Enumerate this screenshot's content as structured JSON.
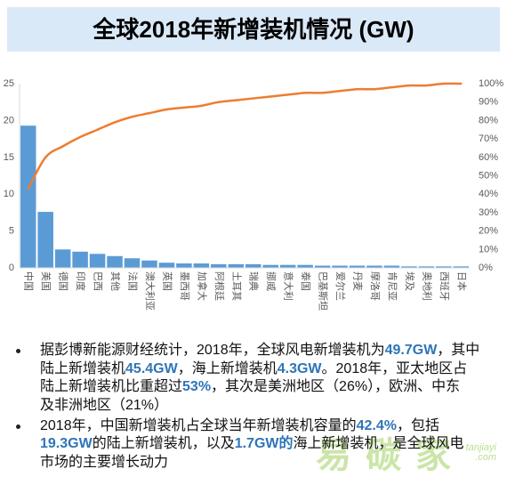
{
  "page": {
    "title": "全球2018年新增装机情况 (GW)"
  },
  "colors": {
    "banner_bg": "#DAE9F7",
    "bar": "#5B9BD5",
    "line": "#ED7D31",
    "axis": "#D9D9D9",
    "tick_text": "#595959",
    "highlight": "#2E75B6",
    "watermark": "#8DC63F"
  },
  "chart_data": {
    "type": "bar",
    "categories": [
      "中国",
      "美国",
      "德国",
      "印度",
      "巴西",
      "其他",
      "法国",
      "澳大利亚",
      "英国",
      "墨西哥",
      "加拿大",
      "阿根廷",
      "土耳其",
      "瑞典",
      "挪威",
      "意大利",
      "泰国",
      "巴基斯坦",
      "爱尔兰",
      "丹麦",
      "摩洛哥",
      "肯尼亚",
      "埃及",
      "奥地利",
      "西班牙",
      "日本"
    ],
    "ylim": [
      0,
      25
    ],
    "y_ticks": [
      0,
      5,
      10,
      15,
      20,
      25
    ],
    "y2lim": [
      0,
      100
    ],
    "y2_ticks": [
      "0%",
      "10%",
      "20%",
      "30%",
      "40%",
      "50%",
      "60%",
      "70%",
      "80%",
      "90%",
      "100%"
    ],
    "grid": false,
    "legend": "none",
    "series": [
      {
        "type": "bar",
        "axis": "left",
        "values": [
          19.3,
          7.6,
          2.5,
          2.2,
          1.9,
          1.6,
          1.3,
          1.0,
          0.7,
          0.6,
          0.6,
          0.5,
          0.5,
          0.5,
          0.4,
          0.4,
          0.4,
          0.3,
          0.3,
          0.3,
          0.3,
          0.3,
          0.2,
          0.2,
          0.2,
          0.2
        ]
      },
      {
        "type": "line",
        "axis": "right",
        "values": [
          43,
          60,
          66,
          71,
          75,
          79,
          82,
          84,
          86,
          87,
          88,
          90,
          91,
          92,
          93,
          94,
          95,
          95,
          96,
          97,
          97,
          98,
          99,
          99,
          100,
          100
        ]
      }
    ]
  },
  "bullets": [
    {
      "lines": [
        [
          "据彭博新能源财经统计，2018年，全球风电新增装机为",
          "49.7GW",
          "，其中"
        ],
        [
          "陆上新增装机",
          "45.4GW",
          "，海上新增装机",
          "4.3GW",
          "。2018年，亚太地区占"
        ],
        [
          "陆上新增装机比重超过",
          "53%",
          "，其次是美洲地区（26%），欧洲、中东"
        ],
        [
          "及非洲地区（21%）"
        ]
      ]
    },
    {
      "lines": [
        [
          "2018年，中国新增装机占全球当年新增装机容量的",
          "42.4%",
          "，包括"
        ],
        [
          "19.3GW",
          "的陆上新增装机，以及",
          "1.7GW的",
          "海上新增装机，是全球风电"
        ],
        [
          "市场的主要增长动力"
        ]
      ]
    }
  ],
  "watermark": {
    "logo": "易碳家",
    "site_line1": "tanjiayi",
    "site_line2": ".com"
  }
}
